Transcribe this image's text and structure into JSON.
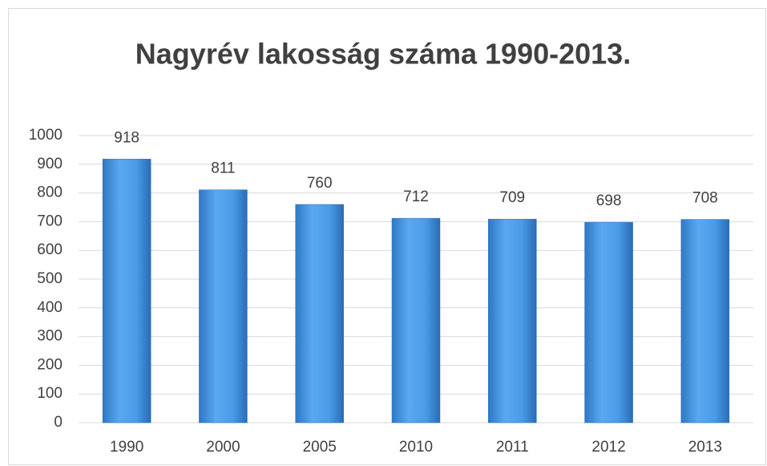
{
  "chart_data": {
    "type": "bar",
    "title": "Nagyrév lakosság száma 1990-2013.",
    "categories": [
      "1990",
      "2000",
      "2005",
      "2010",
      "2011",
      "2012",
      "2013"
    ],
    "values": [
      918,
      811,
      760,
      712,
      709,
      698,
      708
    ],
    "color": "#4a9be8",
    "ylim": [
      0,
      1000
    ],
    "yticks": [
      0,
      100,
      200,
      300,
      400,
      500,
      600,
      700,
      800,
      900,
      1000
    ],
    "grid": true
  }
}
